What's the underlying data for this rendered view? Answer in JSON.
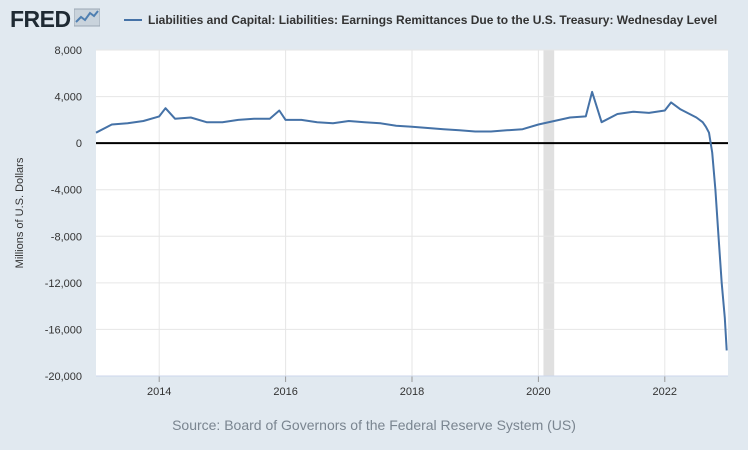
{
  "header": {
    "logo_text": "FRED",
    "logo_icon": "fred-graph-icon"
  },
  "chart_data": {
    "type": "line",
    "series": [
      {
        "name": "Liabilities and Capital: Liabilities: Earnings Remittances Due to the U.S. Treasury: Wednesday Level",
        "color": "#4572a7",
        "x": [
          2013.0,
          2013.25,
          2013.5,
          2013.75,
          2014.0,
          2014.1,
          2014.25,
          2014.5,
          2014.75,
          2015.0,
          2015.25,
          2015.5,
          2015.75,
          2015.9,
          2016.0,
          2016.25,
          2016.5,
          2016.75,
          2017.0,
          2017.25,
          2017.5,
          2017.75,
          2018.0,
          2018.25,
          2018.5,
          2018.75,
          2019.0,
          2019.25,
          2019.5,
          2019.75,
          2020.0,
          2020.25,
          2020.5,
          2020.75,
          2020.85,
          2021.0,
          2021.25,
          2021.5,
          2021.75,
          2022.0,
          2022.1,
          2022.25,
          2022.5,
          2022.6,
          2022.65,
          2022.7,
          2022.75,
          2022.8,
          2022.85,
          2022.9,
          2022.95,
          2022.98
        ],
        "y": [
          900,
          1600,
          1700,
          1900,
          2300,
          3000,
          2100,
          2200,
          1800,
          1800,
          2000,
          2100,
          2100,
          2800,
          2000,
          2000,
          1800,
          1700,
          1900,
          1800,
          1700,
          1500,
          1400,
          1300,
          1200,
          1100,
          1000,
          1000,
          1100,
          1200,
          1600,
          1900,
          2200,
          2300,
          4400,
          1800,
          2500,
          2700,
          2600,
          2800,
          3500,
          2900,
          2200,
          1800,
          1400,
          900,
          -800,
          -4000,
          -8000,
          -12000,
          -15000,
          -17800
        ]
      }
    ],
    "xlabel": "",
    "ylabel": "Millions of U.S. Dollars",
    "xlim": [
      2013.0,
      2023.0
    ],
    "ylim": [
      -20000,
      8000
    ],
    "x_ticks": [
      2014,
      2016,
      2018,
      2020,
      2022
    ],
    "x_tick_labels": [
      "2014",
      "2016",
      "2018",
      "2020",
      "2022"
    ],
    "y_ticks": [
      -20000,
      -16000,
      -12000,
      -8000,
      -4000,
      0,
      4000,
      8000
    ],
    "y_tick_labels": [
      "-20,000",
      "-16,000",
      "-12,000",
      "-8,000",
      "-4,000",
      "0",
      "4,000",
      "8,000"
    ],
    "recession_band": [
      2020.08,
      2020.25
    ],
    "grid": true,
    "legend_position": "top",
    "source": "Source: Board of Governors of the Federal Reserve System (US)"
  }
}
